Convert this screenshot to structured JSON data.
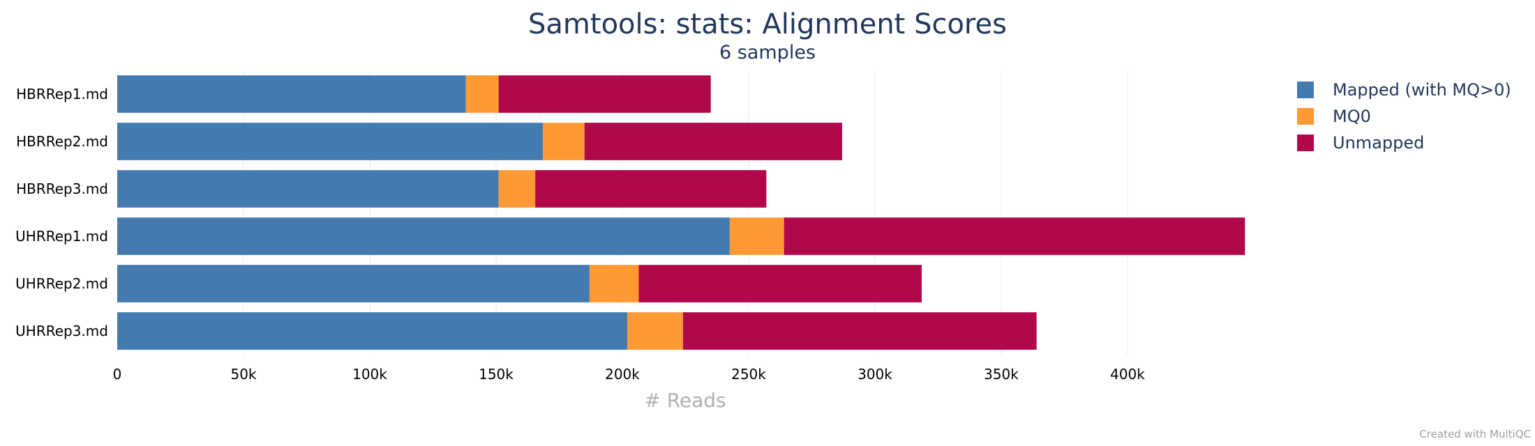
{
  "chart_data": {
    "type": "bar",
    "orientation": "horizontal",
    "stacked": true,
    "title": "Samtools: stats: Alignment Scores",
    "subtitle": "6 samples",
    "xlabel": "# Reads",
    "ylabel": "",
    "xlim": [
      0,
      450000
    ],
    "x_ticks": [
      0,
      50000,
      100000,
      150000,
      200000,
      250000,
      300000,
      350000,
      400000
    ],
    "x_tick_labels": [
      "0",
      "50k",
      "100k",
      "150k",
      "200k",
      "250k",
      "300k",
      "350k",
      "400k"
    ],
    "categories": [
      "HBRRep1.md",
      "HBRRep2.md",
      "HBRRep3.md",
      "UHRRep1.md",
      "UHRRep2.md",
      "UHRRep3.md"
    ],
    "series": [
      {
        "name": "Mapped (with MQ>0)",
        "color": "#437bb1",
        "values": [
          138000,
          168500,
          151000,
          242500,
          187000,
          202000
        ]
      },
      {
        "name": "MQ0",
        "color": "#ff9933",
        "values": [
          13000,
          16500,
          14500,
          21500,
          19500,
          22000
        ]
      },
      {
        "name": "Unmapped",
        "color": "#b1084c",
        "values": [
          84000,
          102000,
          91500,
          182500,
          112000,
          140000
        ]
      }
    ],
    "grid": true,
    "legend_position": "top-right"
  },
  "footer": {
    "credit": "Created with MultiQC"
  }
}
